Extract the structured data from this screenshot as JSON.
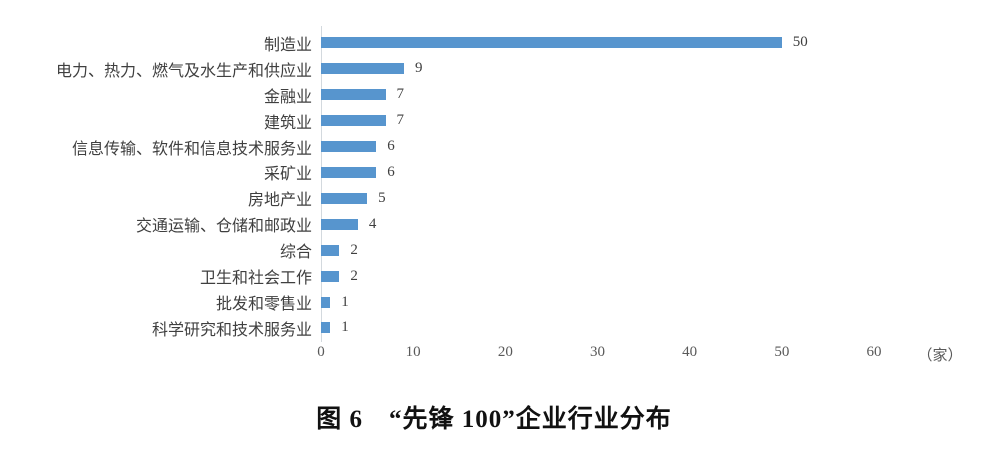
{
  "page": {
    "background": "#ffffff"
  },
  "chart_data": {
    "type": "bar",
    "orientation": "horizontal",
    "title": "图 6　“先锋 100”企业行业分布",
    "unit_label": "（家）",
    "categories": [
      "制造业",
      "电力、热力、燃气及水生产和供应业",
      "金融业",
      "建筑业",
      "信息传输、软件和信息技术服务业",
      "采矿业",
      "房地产业",
      "交通运输、仓储和邮政业",
      "综合",
      "卫生和社会工作",
      "批发和零售业",
      "科学研究和技术服务业"
    ],
    "values": [
      50,
      9,
      7,
      7,
      6,
      6,
      5,
      4,
      2,
      2,
      1,
      1
    ],
    "xlim": [
      0,
      60
    ],
    "xticks": [
      "0",
      "10",
      "20",
      "30",
      "40",
      "50",
      "60"
    ],
    "grid": "off",
    "legend": "none",
    "colors": {
      "bar": "#5795CE",
      "axis_line": "#d3d9de",
      "category_label": "#3f3f3f",
      "value_label": "#3f3f3f",
      "tick_label": "#595959",
      "title": "#111111"
    }
  }
}
